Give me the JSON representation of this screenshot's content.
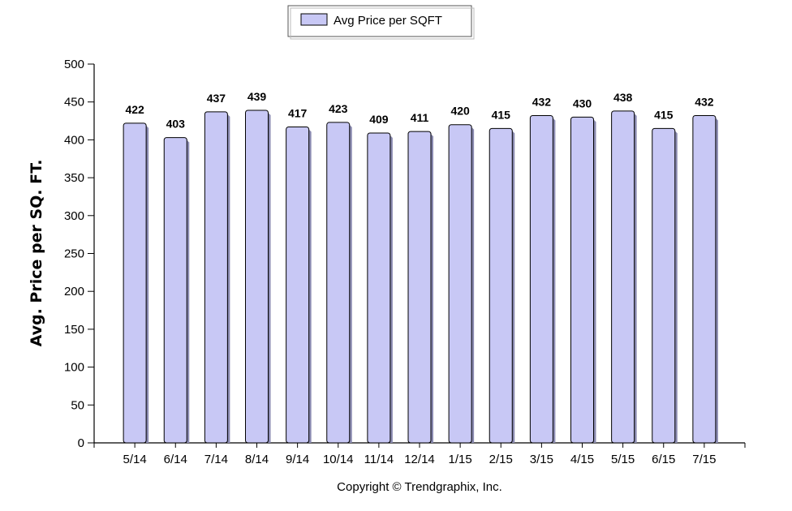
{
  "chart_data": {
    "type": "bar",
    "categories": [
      "5/14",
      "6/14",
      "7/14",
      "8/14",
      "9/14",
      "10/14",
      "11/14",
      "12/14",
      "1/15",
      "2/15",
      "3/15",
      "4/15",
      "5/15",
      "6/15",
      "7/15"
    ],
    "series": [
      {
        "name": "Avg Price per SQFT",
        "values": [
          422,
          403,
          437,
          439,
          417,
          423,
          409,
          411,
          420,
          415,
          432,
          430,
          438,
          415,
          432
        ]
      }
    ],
    "ylabel": "Avg. Price per SQ. FT.",
    "xlabel": "",
    "ylim": [
      0,
      500
    ],
    "yticks": [
      0,
      50,
      100,
      150,
      200,
      250,
      300,
      350,
      400,
      450,
      500
    ],
    "data_labels": true,
    "grid": false,
    "legend": "top-center",
    "colors": {
      "bar_fill": "#c8c8f5",
      "bar_stroke": "#000000"
    }
  },
  "footer": {
    "copyright": "Copyright © Trendgraphix, Inc."
  }
}
